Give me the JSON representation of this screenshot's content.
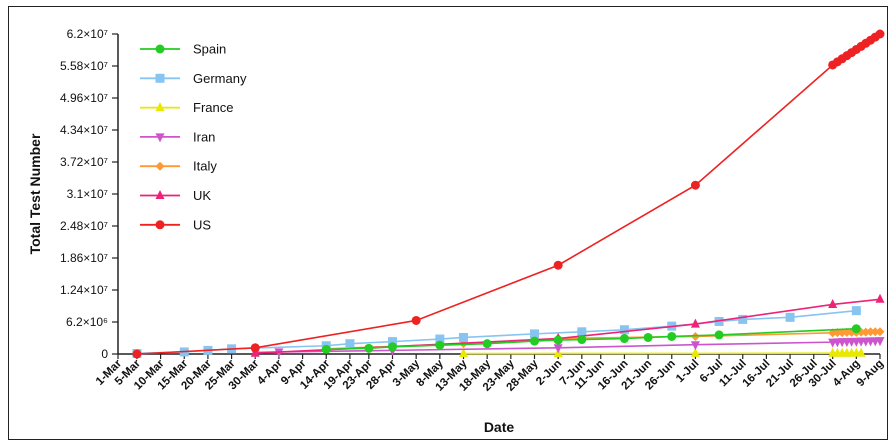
{
  "chart_data": {
    "type": "line",
    "xlabel": "Date",
    "ylabel": "Total Test Number",
    "x_range": [
      "2020-03-01",
      "2020-08-09"
    ],
    "ylim": [
      0,
      62000000
    ],
    "y_ticks": [
      0,
      6200000,
      12400000,
      18600000,
      24800000,
      31000000,
      37200000,
      43400000,
      49600000,
      55800000,
      62000000
    ],
    "y_tick_labels": [
      "0",
      "6.2×10⁶",
      "1.24×10⁷",
      "1.86×10⁷",
      "2.48×10⁷",
      "3.1×10⁷",
      "3.72×10⁷",
      "4.34×10⁷",
      "4.96×10⁷",
      "5.58×10⁷",
      "6.2×10⁷"
    ],
    "x_ticks": [
      "2020-03-01",
      "2020-03-05",
      "2020-03-10",
      "2020-03-15",
      "2020-03-20",
      "2020-03-25",
      "2020-03-30",
      "2020-04-04",
      "2020-04-09",
      "2020-04-14",
      "2020-04-19",
      "2020-04-23",
      "2020-04-28",
      "2020-05-03",
      "2020-05-08",
      "2020-05-13",
      "2020-05-18",
      "2020-05-23",
      "2020-05-28",
      "2020-06-02",
      "2020-06-07",
      "2020-06-11",
      "2020-06-16",
      "2020-06-21",
      "2020-06-26",
      "2020-07-01",
      "2020-07-06",
      "2020-07-11",
      "2020-07-16",
      "2020-07-21",
      "2020-07-26",
      "2020-07-30",
      "2020-08-04",
      "2020-08-09"
    ],
    "x_tick_labels": [
      "1-Mar",
      "5-Mar",
      "10-Mar",
      "15-Mar",
      "20-Mar",
      "25-Mar",
      "30-Mar",
      "4-Apr",
      "9-Apr",
      "14-Apr",
      "19-Apr",
      "23-Apr",
      "28-Apr",
      "3-May",
      "8-May",
      "13-May",
      "18-May",
      "23-May",
      "28-May",
      "2-Jun",
      "7-Jun",
      "11-Jun",
      "16-Jun",
      "21-Jun",
      "26-Jun",
      "1-Jul",
      "6-Jul",
      "11-Jul",
      "16-Jul",
      "21-Jul",
      "26-Jul",
      "30-Jul",
      "4-Aug",
      "9-Aug"
    ],
    "legend_position": "top-left",
    "grid": false,
    "series": [
      {
        "name": "Spain",
        "color": "#22cc22",
        "marker": "circle",
        "points": [
          [
            "2020-04-14",
            900000
          ],
          [
            "2020-04-23",
            1100000
          ],
          [
            "2020-04-28",
            1400000
          ],
          [
            "2020-05-08",
            1700000
          ],
          [
            "2020-05-18",
            2000000
          ],
          [
            "2020-05-28",
            2500000
          ],
          [
            "2020-06-02",
            2700000
          ],
          [
            "2020-06-07",
            2800000
          ],
          [
            "2020-06-16",
            3000000
          ],
          [
            "2020-06-21",
            3200000
          ],
          [
            "2020-06-26",
            3400000
          ],
          [
            "2020-07-06",
            3700000
          ],
          [
            "2020-08-04",
            4900000
          ]
        ]
      },
      {
        "name": "Germany",
        "color": "#88c4f0",
        "marker": "square",
        "points": [
          [
            "2020-03-05",
            100000
          ],
          [
            "2020-03-15",
            400000
          ],
          [
            "2020-03-20",
            700000
          ],
          [
            "2020-03-25",
            1000000
          ],
          [
            "2020-04-14",
            1600000
          ],
          [
            "2020-04-19",
            2000000
          ],
          [
            "2020-04-28",
            2400000
          ],
          [
            "2020-05-08",
            2900000
          ],
          [
            "2020-05-13",
            3200000
          ],
          [
            "2020-05-28",
            3900000
          ],
          [
            "2020-06-07",
            4300000
          ],
          [
            "2020-06-16",
            4700000
          ],
          [
            "2020-06-26",
            5400000
          ],
          [
            "2020-07-06",
            6300000
          ],
          [
            "2020-07-11",
            6700000
          ],
          [
            "2020-07-21",
            7100000
          ],
          [
            "2020-08-04",
            8400000
          ]
        ]
      },
      {
        "name": "France",
        "color": "#e8e800",
        "marker": "triangle-up",
        "points": [
          [
            "2020-05-13",
            80000
          ],
          [
            "2020-06-02",
            100000
          ],
          [
            "2020-07-01",
            120000
          ],
          [
            "2020-07-30",
            150000
          ],
          [
            "2020-07-31",
            150000
          ],
          [
            "2020-08-01",
            150000
          ],
          [
            "2020-08-02",
            155000
          ],
          [
            "2020-08-03",
            155000
          ],
          [
            "2020-08-04",
            160000
          ],
          [
            "2020-08-05",
            160000
          ]
        ]
      },
      {
        "name": "Iran",
        "color": "#cc55cc",
        "marker": "triangle-down",
        "points": [
          [
            "2020-03-30",
            300000
          ],
          [
            "2020-04-04",
            400000
          ],
          [
            "2020-04-28",
            700000
          ],
          [
            "2020-06-02",
            1200000
          ],
          [
            "2020-07-01",
            1800000
          ],
          [
            "2020-07-30",
            2300000
          ],
          [
            "2020-07-31",
            2350000
          ],
          [
            "2020-08-01",
            2400000
          ],
          [
            "2020-08-02",
            2400000
          ],
          [
            "2020-08-03",
            2450000
          ],
          [
            "2020-08-04",
            2450000
          ],
          [
            "2020-08-05",
            2500000
          ],
          [
            "2020-08-06",
            2500000
          ],
          [
            "2020-08-07",
            2550000
          ],
          [
            "2020-08-08",
            2550000
          ],
          [
            "2020-08-09",
            2600000
          ]
        ]
      },
      {
        "name": "Italy",
        "color": "#ff9933",
        "marker": "diamond",
        "points": [
          [
            "2020-04-14",
            1000000
          ],
          [
            "2020-05-13",
            2000000
          ],
          [
            "2020-06-02",
            3000000
          ],
          [
            "2020-07-01",
            3400000
          ],
          [
            "2020-07-30",
            4100000
          ],
          [
            "2020-07-31",
            4150000
          ],
          [
            "2020-08-01",
            4150000
          ],
          [
            "2020-08-02",
            4200000
          ],
          [
            "2020-08-03",
            4200000
          ],
          [
            "2020-08-04",
            4200000
          ],
          [
            "2020-08-05",
            4250000
          ],
          [
            "2020-08-06",
            4250000
          ],
          [
            "2020-08-07",
            4300000
          ],
          [
            "2020-08-08",
            4300000
          ],
          [
            "2020-08-09",
            4300000
          ]
        ]
      },
      {
        "name": "UK",
        "color": "#ee2277",
        "marker": "triangle-up",
        "points": [
          [
            "2020-03-30",
            150000
          ],
          [
            "2020-06-02",
            3000000
          ],
          [
            "2020-07-01",
            5800000
          ],
          [
            "2020-07-30",
            9600000
          ],
          [
            "2020-08-09",
            10600000
          ]
        ]
      },
      {
        "name": "US",
        "color": "#ee2222",
        "marker": "circle",
        "points": [
          [
            "2020-03-05",
            0
          ],
          [
            "2020-03-30",
            1200000
          ],
          [
            "2020-05-03",
            6500000
          ],
          [
            "2020-06-02",
            17200000
          ],
          [
            "2020-07-01",
            32700000
          ],
          [
            "2020-07-30",
            56000000
          ],
          [
            "2020-07-31",
            56600000
          ],
          [
            "2020-08-01",
            57200000
          ],
          [
            "2020-08-02",
            57800000
          ],
          [
            "2020-08-03",
            58400000
          ],
          [
            "2020-08-04",
            59000000
          ],
          [
            "2020-08-05",
            59600000
          ],
          [
            "2020-08-06",
            60200000
          ],
          [
            "2020-08-07",
            60800000
          ],
          [
            "2020-08-08",
            61400000
          ],
          [
            "2020-08-09",
            62000000
          ]
        ]
      }
    ]
  }
}
